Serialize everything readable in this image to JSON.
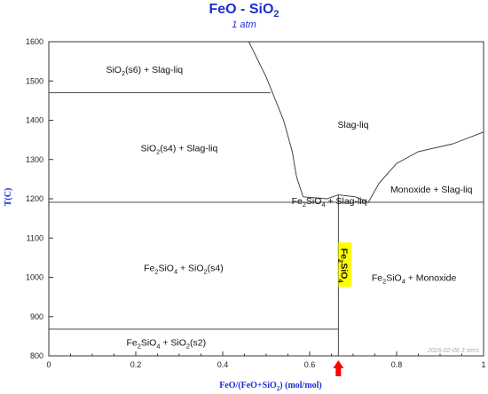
{
  "chart_data": {
    "type": "phase-diagram",
    "title": "FeO - SiO",
    "title_sub": "2",
    "subtitle": "1 atm",
    "xlabel": {
      "main": "FeO/(FeO+SiO",
      "sub": "2",
      "tail": ") (mol/mol)"
    },
    "ylabel": "T(C)",
    "xlim": [
      0,
      1
    ],
    "ylim": [
      800,
      1600
    ],
    "xticks": [
      "0",
      "0.2",
      "0.4",
      "0.6",
      "0.8",
      "1"
    ],
    "yticks": [
      "800",
      "900",
      "1000",
      "1100",
      "1200",
      "1300",
      "1400",
      "1500",
      "1600"
    ],
    "stamp": "2026-02-06  3 secs",
    "boundaries": {
      "horizontal": [
        {
          "y": 1470,
          "x0": 0,
          "x1": 0.51
        },
        {
          "y": 1191,
          "x0": 0,
          "x1": 1
        },
        {
          "y": 868,
          "x0": 0,
          "x1": 0.666
        }
      ],
      "vertical": [
        {
          "x": 0.666,
          "y0": 800,
          "y1": 1210
        }
      ],
      "liquidus_left": [
        [
          0.46,
          1600
        ],
        [
          0.5,
          1510
        ],
        [
          0.54,
          1400
        ],
        [
          0.56,
          1320
        ],
        [
          0.57,
          1255
        ],
        [
          0.585,
          1205
        ]
      ],
      "liquidus_right_a": [
        [
          0.585,
          1205
        ],
        [
          0.64,
          1200
        ],
        [
          0.666,
          1210
        ],
        [
          0.705,
          1205
        ],
        [
          0.735,
          1191
        ]
      ],
      "liquidus_right_b": [
        [
          0.735,
          1191
        ],
        [
          0.76,
          1240
        ],
        [
          0.8,
          1290
        ],
        [
          0.85,
          1320
        ],
        [
          0.93,
          1340
        ],
        [
          1,
          1370
        ]
      ]
    },
    "regions": [
      {
        "segments": [
          [
            "SiO",
            ""
          ],
          [
            "2",
            "sub"
          ],
          [
            "(s6) + Slag-liq",
            ""
          ]
        ],
        "x": 0.22,
        "y": 1530
      },
      {
        "segments": [
          [
            "SiO",
            ""
          ],
          [
            "2",
            "sub"
          ],
          [
            "(s4) + Slag-liq",
            ""
          ]
        ],
        "x": 0.3,
        "y": 1330
      },
      {
        "segments": [
          [
            "Slag-liq",
            ""
          ]
        ],
        "x": 0.7,
        "y": 1390
      },
      {
        "segments": [
          [
            "Monoxide + Slag-liq",
            ""
          ]
        ],
        "x": 0.88,
        "y": 1225
      },
      {
        "segments": [
          [
            "Fe",
            ""
          ],
          [
            "2",
            "sub"
          ],
          [
            "SiO",
            ""
          ],
          [
            "4",
            "sub"
          ],
          [
            " + Slag-liq",
            ""
          ]
        ],
        "x": 0.645,
        "y": 1195
      },
      {
        "segments": [
          [
            "Fe",
            ""
          ],
          [
            "2",
            "sub"
          ],
          [
            "SiO",
            ""
          ],
          [
            "4",
            "sub"
          ],
          [
            " + SiO",
            ""
          ],
          [
            "2",
            "sub"
          ],
          [
            "(s4)",
            ""
          ]
        ],
        "x": 0.31,
        "y": 1025
      },
      {
        "segments": [
          [
            "Fe",
            ""
          ],
          [
            "2",
            "sub"
          ],
          [
            "SiO",
            ""
          ],
          [
            "4",
            "sub"
          ],
          [
            " + Monoxide",
            ""
          ]
        ],
        "x": 0.84,
        "y": 1000
      },
      {
        "segments": [
          [
            "Fe",
            ""
          ],
          [
            "2",
            "sub"
          ],
          [
            "SiO",
            ""
          ],
          [
            "4",
            "sub"
          ],
          [
            " + SiO",
            ""
          ],
          [
            "2",
            "sub"
          ],
          [
            "(s2)",
            ""
          ]
        ],
        "x": 0.27,
        "y": 835
      }
    ],
    "compound_label": {
      "segments": [
        [
          "Fe",
          ""
        ],
        [
          "2",
          "sub"
        ],
        [
          "SiO",
          ""
        ],
        [
          "4",
          "sub"
        ]
      ],
      "x": 0.666,
      "y": 1030,
      "highlight": "#ffff00"
    },
    "marker": {
      "x": 0.666,
      "color": "#ff0000"
    }
  }
}
